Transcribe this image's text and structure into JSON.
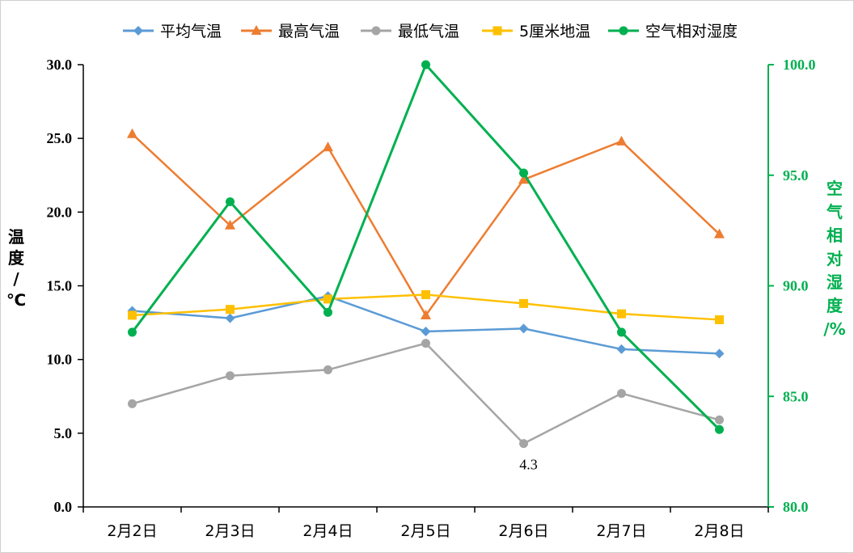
{
  "chart_data": {
    "type": "line",
    "categories": [
      "2月2日",
      "2月3日",
      "2月4日",
      "2月5日",
      "2月6日",
      "2月7日",
      "2月8日"
    ],
    "y_left": {
      "label": "温度/℃",
      "ylim": [
        0,
        30
      ],
      "ticks": [
        "0.0",
        "5.0",
        "10.0",
        "15.0",
        "20.0",
        "25.0",
        "30.0"
      ]
    },
    "y_right": {
      "label": "空气相对湿度/%",
      "ylim": [
        80,
        100
      ],
      "ticks": [
        "80.0",
        "85.0",
        "90.0",
        "95.0",
        "100.0"
      ]
    },
    "grid": false,
    "legend_position": "top",
    "series": [
      {
        "name": "平均气温",
        "axis": "left",
        "color": "#5B9BD5",
        "marker": "diamond",
        "values": [
          13.3,
          12.8,
          14.3,
          11.9,
          12.1,
          10.7,
          10.4
        ]
      },
      {
        "name": "最高气温",
        "axis": "left",
        "color": "#ED7D31",
        "marker": "triangle",
        "values": [
          25.3,
          19.1,
          24.4,
          13.0,
          22.2,
          24.8,
          18.5
        ]
      },
      {
        "name": "最低气温",
        "axis": "left",
        "color": "#A5A5A5",
        "marker": "circle",
        "values": [
          7.0,
          8.9,
          9.3,
          11.1,
          4.3,
          7.7,
          5.9
        ]
      },
      {
        "name": "5厘米地温",
        "axis": "left",
        "color": "#FFC000",
        "marker": "square",
        "values": [
          13.0,
          13.4,
          14.1,
          14.4,
          13.8,
          13.1,
          12.7
        ]
      },
      {
        "name": "空气相对湿度",
        "axis": "right",
        "color": "#00B050",
        "marker": "circle",
        "values": [
          87.9,
          93.8,
          88.8,
          100.0,
          95.1,
          87.9,
          83.5
        ]
      }
    ],
    "annotations": [
      {
        "series": "最低气温",
        "category": "2月6日",
        "text": "4.3"
      }
    ]
  }
}
